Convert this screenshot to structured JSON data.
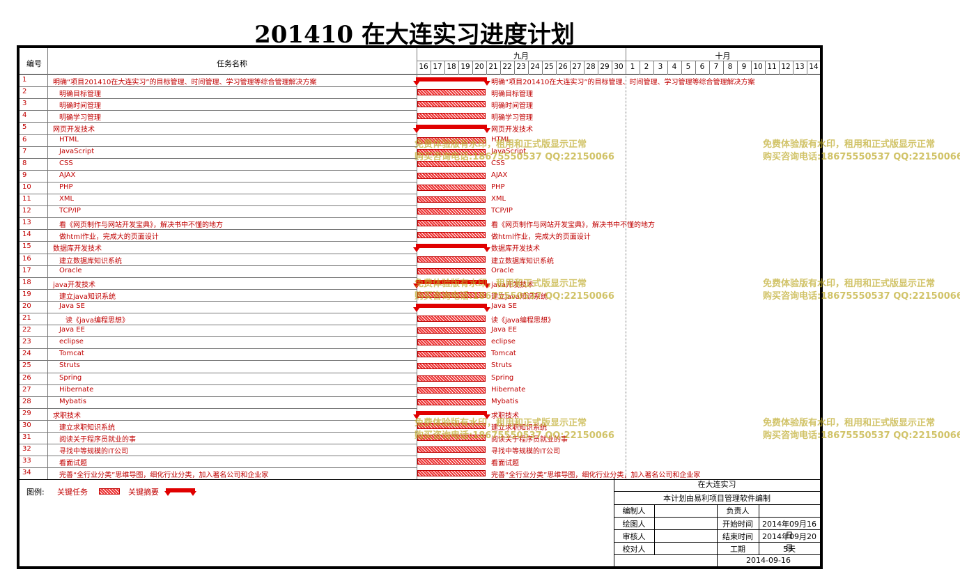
{
  "title": "201410 在大连实习进度计划",
  "header": {
    "col_id": "编号",
    "col_name": "任务名称",
    "month1": "九月",
    "month2": "十月"
  },
  "days": [
    "16",
    "17",
    "18",
    "19",
    "20",
    "21",
    "22",
    "23",
    "24",
    "25",
    "26",
    "27",
    "28",
    "29",
    "30",
    "1",
    "2",
    "3",
    "4",
    "5",
    "6",
    "7",
    "8",
    "9",
    "10",
    "11",
    "12",
    "13",
    "14"
  ],
  "tasks": [
    {
      "id": "1",
      "name": "明确“项目201410在大连实习”的目标管理、时间管理、学习管理等综合管理解决方案",
      "level": 0,
      "summary": true
    },
    {
      "id": "2",
      "name": "明确目标管理",
      "level": 1,
      "summary": false
    },
    {
      "id": "3",
      "name": "明确时间管理",
      "level": 1,
      "summary": false
    },
    {
      "id": "4",
      "name": "明确学习管理",
      "level": 1,
      "summary": false
    },
    {
      "id": "5",
      "name": "网页开发技术",
      "level": 0,
      "summary": true
    },
    {
      "id": "6",
      "name": "HTML",
      "level": 1,
      "summary": false
    },
    {
      "id": "7",
      "name": "JavaScript",
      "level": 1,
      "summary": false
    },
    {
      "id": "8",
      "name": "CSS",
      "level": 1,
      "summary": false
    },
    {
      "id": "9",
      "name": "AJAX",
      "level": 1,
      "summary": false
    },
    {
      "id": "10",
      "name": "PHP",
      "level": 1,
      "summary": false
    },
    {
      "id": "11",
      "name": "XML",
      "level": 1,
      "summary": false
    },
    {
      "id": "12",
      "name": "TCP/IP",
      "level": 1,
      "summary": false
    },
    {
      "id": "13",
      "name": "看《网页制作与网站开发宝典》，解决书中不懂的地方",
      "level": 1,
      "summary": false
    },
    {
      "id": "14",
      "name": "做html作业，完成大的页面设计",
      "level": 1,
      "summary": false
    },
    {
      "id": "15",
      "name": "数据库开发技术",
      "level": 0,
      "summary": true
    },
    {
      "id": "16",
      "name": "建立数据库知识系统",
      "level": 1,
      "summary": false
    },
    {
      "id": "17",
      "name": "Oracle",
      "level": 1,
      "summary": false
    },
    {
      "id": "18",
      "name": "java开发技术",
      "level": 0,
      "summary": true
    },
    {
      "id": "19",
      "name": "建立java知识系统",
      "level": 1,
      "summary": false
    },
    {
      "id": "20",
      "name": "Java SE",
      "level": 1,
      "summary": true
    },
    {
      "id": "21",
      "name": "读《java编程思想》",
      "level": 2,
      "summary": false
    },
    {
      "id": "22",
      "name": "Java EE",
      "level": 1,
      "summary": false
    },
    {
      "id": "23",
      "name": "eclipse",
      "level": 1,
      "summary": false
    },
    {
      "id": "24",
      "name": "Tomcat",
      "level": 1,
      "summary": false
    },
    {
      "id": "25",
      "name": "Struts",
      "level": 1,
      "summary": false
    },
    {
      "id": "26",
      "name": "Spring",
      "level": 1,
      "summary": false
    },
    {
      "id": "27",
      "name": "Hibernate",
      "level": 1,
      "summary": false
    },
    {
      "id": "28",
      "name": "Mybatis",
      "level": 1,
      "summary": false
    },
    {
      "id": "29",
      "name": "求职技术",
      "level": 0,
      "summary": true
    },
    {
      "id": "30",
      "name": "建立求职知识系统",
      "level": 1,
      "summary": false
    },
    {
      "id": "31",
      "name": "阅读关于程序员就业的事",
      "level": 1,
      "summary": false
    },
    {
      "id": "32",
      "name": "寻找中等规模的IT公司",
      "level": 1,
      "summary": false
    },
    {
      "id": "33",
      "name": "看面试题",
      "level": 1,
      "summary": false
    },
    {
      "id": "34",
      "name": "完善“全行业分类”思维导图，细化行业分类，加入著名公司和企业家",
      "level": 1,
      "summary": false
    }
  ],
  "legend": {
    "label": "图例:",
    "critical": "关键任务",
    "summary": "关键摘要"
  },
  "info": {
    "project": "在大连实习",
    "note": "本计划由易利项目管理软件编制",
    "maker_label": "编制人",
    "owner_label": "负责人",
    "drawer_label": "绘图人",
    "start_label": "开始时间",
    "start_value": "2014年09月16日",
    "reviewer_label": "审核人",
    "end_label": "结束时间",
    "end_value": "2014年09月20日",
    "checker_label": "校对人",
    "duration_label": "工期",
    "duration_value": "5天",
    "date": "2014-09-16"
  },
  "watermark": {
    "line1": "免费体验版有水印，租用和正式版显示正常",
    "line2": "购买咨询电话:18675550537 QQ:22150066"
  },
  "colors": {
    "task_text": "#c00000",
    "bar": "#e00000",
    "watermark": "#bea828"
  }
}
